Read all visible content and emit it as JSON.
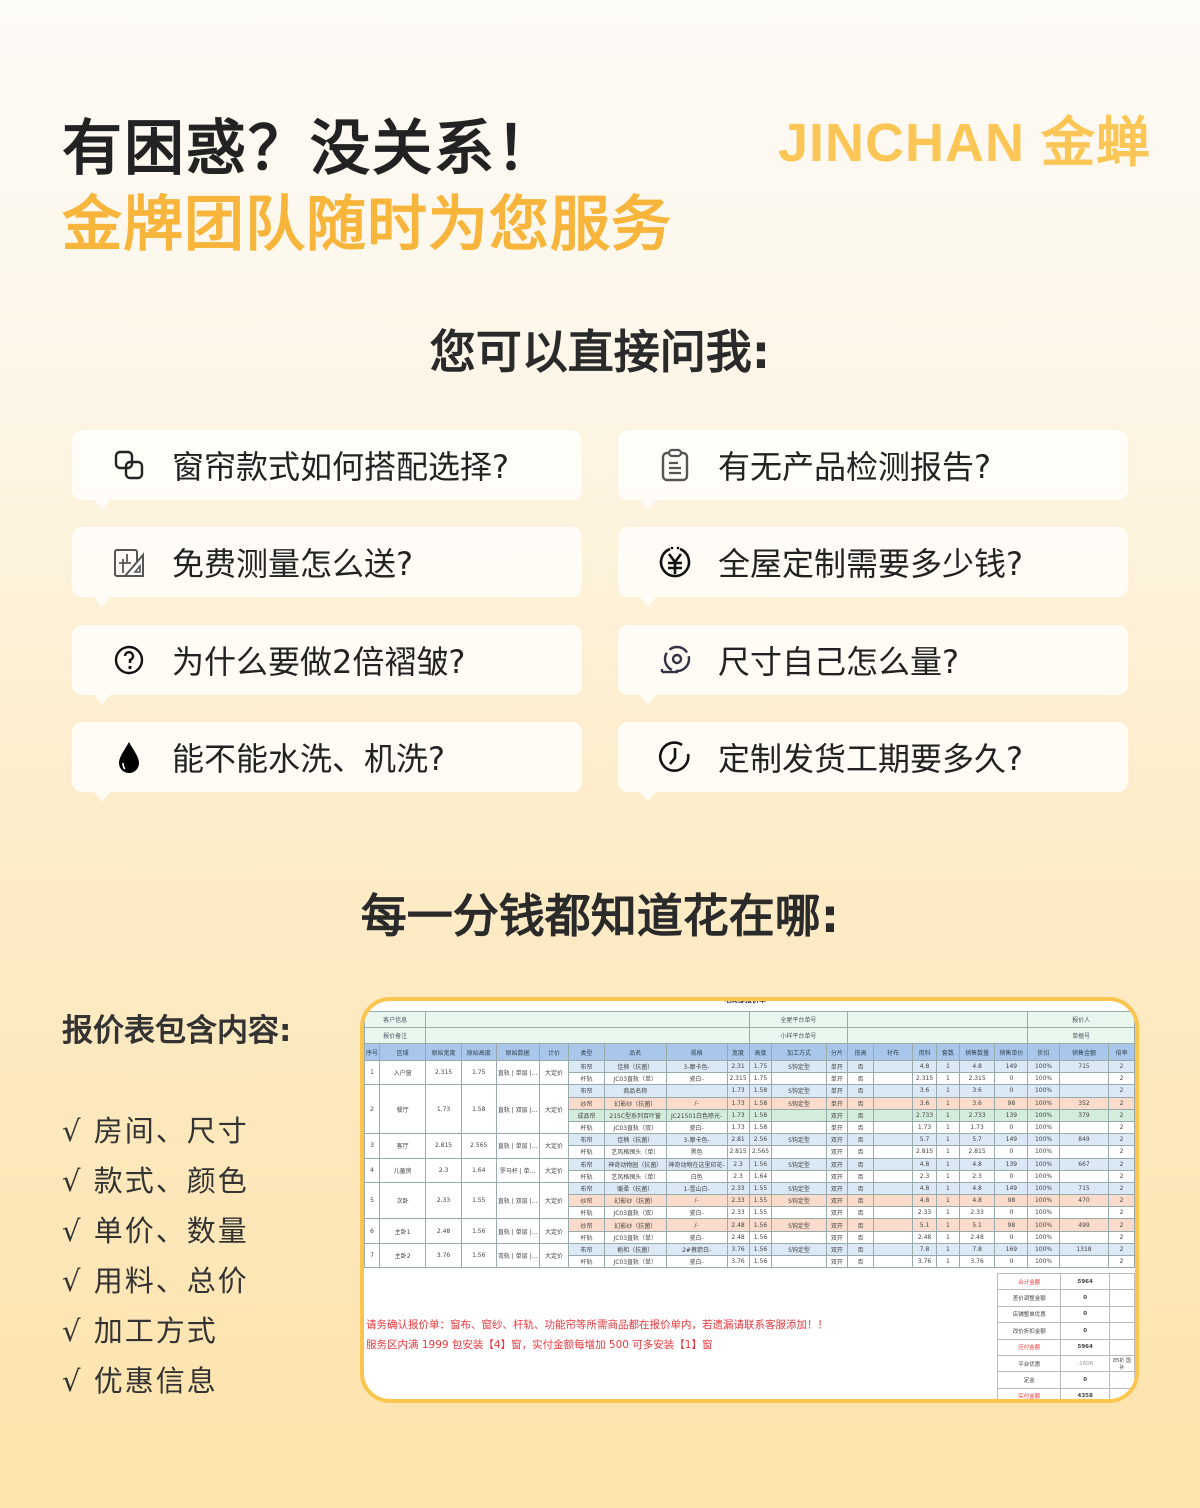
{
  "header": {
    "line1": "有困惑？没关系！",
    "line2": "金牌团队随时为您服务",
    "logo": "JINCHAN 金蝉"
  },
  "ask_title": "您可以直接问我:",
  "questions": [
    {
      "icon": "overlap-squares-icon",
      "text": "窗帘款式如何搭配选择?"
    },
    {
      "icon": "clipboard-icon",
      "text": "有无产品检测报告?"
    },
    {
      "icon": "ruler-triangle-icon",
      "text": "免费测量怎么送?"
    },
    {
      "icon": "yen-coin-icon",
      "text": "全屋定制需要多少钱?"
    },
    {
      "icon": "question-circle-icon",
      "text": "为什么要做2倍褶皱?"
    },
    {
      "icon": "tape-measure-icon",
      "text": "尺寸自己怎么量?"
    },
    {
      "icon": "water-drop-icon",
      "text": "能不能水洗、机洗?"
    },
    {
      "icon": "clock-icon",
      "text": "定制发货工期要多久?"
    }
  ],
  "price_title": "每一分钱都知道花在哪:",
  "contents_title": "报价表包含内容:",
  "contents": [
    "√ 房间、尺寸",
    "√ 款式、颜色",
    "√ 单价、数量",
    "√ 用料、总价",
    "√ 加工方式",
    "√ 优惠信息"
  ],
  "colors": {
    "accent": "#f7b53c",
    "border": "#fcc54f",
    "curtain": "#dbe9f6",
    "sheer": "#fbdccc",
    "finished": "#d3ecdc",
    "header": "#a9c7ea"
  },
  "sheet": {
    "title": "电商部报价单",
    "info": [
      [
        "客户信息",
        "全屋平台单号",
        "报价人"
      ],
      [
        "报价备注",
        "小样平台单号",
        "单据号"
      ]
    ],
    "columns": [
      "序号",
      "区域",
      "原始宽度",
      "原始高度",
      "原始数据",
      "计价",
      "类型",
      "品名",
      "规格",
      "宽度",
      "高度",
      "加工方式",
      "分片",
      "揽高",
      "衬布",
      "用料",
      "套数",
      "销售数量",
      "销售单价",
      "折扣",
      "销售金额",
      "倍率"
    ],
    "groups": [
      {
        "no": "1",
        "room": "入户窗",
        "w": "2.315",
        "h": "1.75",
        "raw": "直轨 | 单层 |...",
        "pricing": "大定价",
        "items": [
          [
            "布帘",
            "佳楠（抗菌）",
            "3-摩卡色-",
            "2.31",
            "1.75",
            "S钩定型",
            "单开",
            "否",
            "",
            "4.8",
            "1",
            "4.8",
            "149",
            "100%",
            "715",
            "2"
          ],
          [
            "杆轨",
            "JC03直轨（单）",
            "瓷白-",
            "2.315",
            "1.75",
            "",
            "单开",
            "否",
            "",
            "2.315",
            "1",
            "2.315",
            "0",
            "100%",
            "",
            "2"
          ]
        ]
      },
      {
        "no": "2",
        "room": "餐厅",
        "w": "1.73",
        "h": "1.58",
        "raw": "直轨 | 双层 |...",
        "pricing": "大定价",
        "items": [
          [
            "布帘",
            "商品名称",
            "",
            "1.73",
            "1.58",
            "S钩定型",
            "单开",
            "否",
            "",
            "3.6",
            "1",
            "3.6",
            "0",
            "100%",
            "",
            "2"
          ],
          [
            "纱帘",
            "幻影纱（抗菌）",
            "/-",
            "1.73",
            "1.58",
            "S钩定型",
            "单开",
            "否",
            "",
            "3.6",
            "1",
            "3.6",
            "98",
            "100%",
            "352",
            "2"
          ],
          [
            "成品帘",
            "215C型系列百叶窗",
            "JC21501白色喷光-",
            "1.73",
            "1.58",
            "",
            "双开",
            "否",
            "",
            "2.733",
            "1",
            "2.733",
            "139",
            "100%",
            "379",
            "2"
          ],
          [
            "杆轨",
            "JC03直轨（双）",
            "瓷白-",
            "1.73",
            "1.58",
            "",
            "单开",
            "否",
            "",
            "1.73",
            "1",
            "1.73",
            "0",
            "100%",
            "",
            "2"
          ]
        ]
      },
      {
        "no": "3",
        "room": "客厅",
        "w": "2.815",
        "h": "2.565",
        "raw": "直轨 | 单层 |...",
        "pricing": "大定价",
        "items": [
          [
            "布帘",
            "佳楠（抗菌）",
            "3-摩卡色-",
            "2.81",
            "2.56",
            "S钩定型",
            "双开",
            "否",
            "",
            "5.7",
            "1",
            "5.7",
            "149",
            "100%",
            "849",
            "2"
          ],
          [
            "杆轨",
            "艺风格囤头（单）",
            "黑色",
            "2.815",
            "2.565",
            "",
            "双开",
            "否",
            "",
            "2.815",
            "1",
            "2.815",
            "0",
            "100%",
            "",
            "2"
          ]
        ]
      },
      {
        "no": "4",
        "room": "儿童房",
        "w": "2.3",
        "h": "1.64",
        "raw": "罗马杆 | 单...",
        "pricing": "大定价",
        "items": [
          [
            "布帘",
            "神奇动物园（抗菌）",
            "神奇动物在这里印花-",
            "2.3",
            "1.56",
            "S钩定型",
            "双开",
            "否",
            "",
            "4.8",
            "1",
            "4.8",
            "139",
            "100%",
            "667",
            "2"
          ],
          [
            "杆轨",
            "艺风格囤头（单）",
            "白色",
            "2.3",
            "1.64",
            "",
            "双开",
            "否",
            "",
            "2.3",
            "1",
            "2.3",
            "0",
            "100%",
            "",
            "2"
          ]
        ]
      },
      {
        "no": "5",
        "room": "次卧",
        "w": "2.33",
        "h": "1.55",
        "raw": "直轨 | 双层 |...",
        "pricing": "大定价",
        "items": [
          [
            "布帘",
            "暖柔（抗菌）",
            "1-雪山白-",
            "2.33",
            "1.55",
            "S钩定型",
            "双开",
            "否",
            "",
            "4.8",
            "1",
            "4.8",
            "149",
            "100%",
            "715",
            "2"
          ],
          [
            "纱帘",
            "幻影纱（抗菌）",
            "/-",
            "2.33",
            "1.55",
            "S钩定型",
            "双开",
            "否",
            "",
            "4.8",
            "1",
            "4.8",
            "98",
            "100%",
            "470",
            "2"
          ],
          [
            "杆轨",
            "JC03直轨（双）",
            "瓷白-",
            "2.33",
            "1.55",
            "",
            "双开",
            "否",
            "",
            "2.33",
            "1",
            "2.33",
            "0",
            "100%",
            "",
            "2"
          ]
        ]
      },
      {
        "no": "6",
        "room": "主卧1",
        "w": "2.48",
        "h": "1.56",
        "raw": "直轨 | 单层 |...",
        "pricing": "大定价",
        "items": [
          [
            "纱帘",
            "幻影纱（抗菌）",
            "/-",
            "2.48",
            "1.56",
            "S钩定型",
            "双开",
            "否",
            "",
            "5.1",
            "1",
            "5.1",
            "98",
            "100%",
            "499",
            "2"
          ],
          [
            "杆轨",
            "JC03直轨（单）",
            "瓷白-",
            "2.48",
            "1.56",
            "",
            "双开",
            "否",
            "",
            "2.48",
            "1",
            "2.48",
            "0",
            "100%",
            "",
            "2"
          ]
        ]
      },
      {
        "no": "7",
        "room": "主卧2",
        "w": "3.76",
        "h": "1.56",
        "raw": "弯轨 | 单层 |...",
        "pricing": "大定价",
        "items": [
          [
            "布帘",
            "栀和（抗菌）",
            "2#蔡箭白-",
            "3.76",
            "1.56",
            "S钩定型",
            "双开",
            "否",
            "",
            "7.8",
            "1",
            "7.8",
            "169",
            "100%",
            "1318",
            "2"
          ],
          [
            "杆轨",
            "JC03直轨（单）",
            "瓷白-",
            "3.76",
            "1.56",
            "",
            "双开",
            "否",
            "",
            "3.76",
            "1",
            "3.76",
            "0",
            "100%",
            "",
            "2"
          ]
        ]
      }
    ],
    "summary": [
      [
        "合计金额",
        "5964",
        ""
      ],
      [
        "差价调整金额",
        "0",
        ""
      ],
      [
        "店铺整单优惠",
        "0",
        ""
      ],
      [
        "改价折扣金额",
        "0",
        ""
      ],
      [
        "应付金额",
        "5964",
        ""
      ],
      [
        "平台优惠",
        "-1606",
        "85折 国补"
      ],
      [
        "定金",
        "0",
        ""
      ],
      [
        "实付金额",
        "4358",
        ""
      ]
    ],
    "notes": [
      "请务确认报价单：窗布、窗纱、杆轨、功能帘等所需商品都在报价单内，若遗漏请联系客服添加！！",
      "服务区内满 1999 包安装【4】窗，实付金额每增加 500 可多安装【1】窗"
    ]
  }
}
